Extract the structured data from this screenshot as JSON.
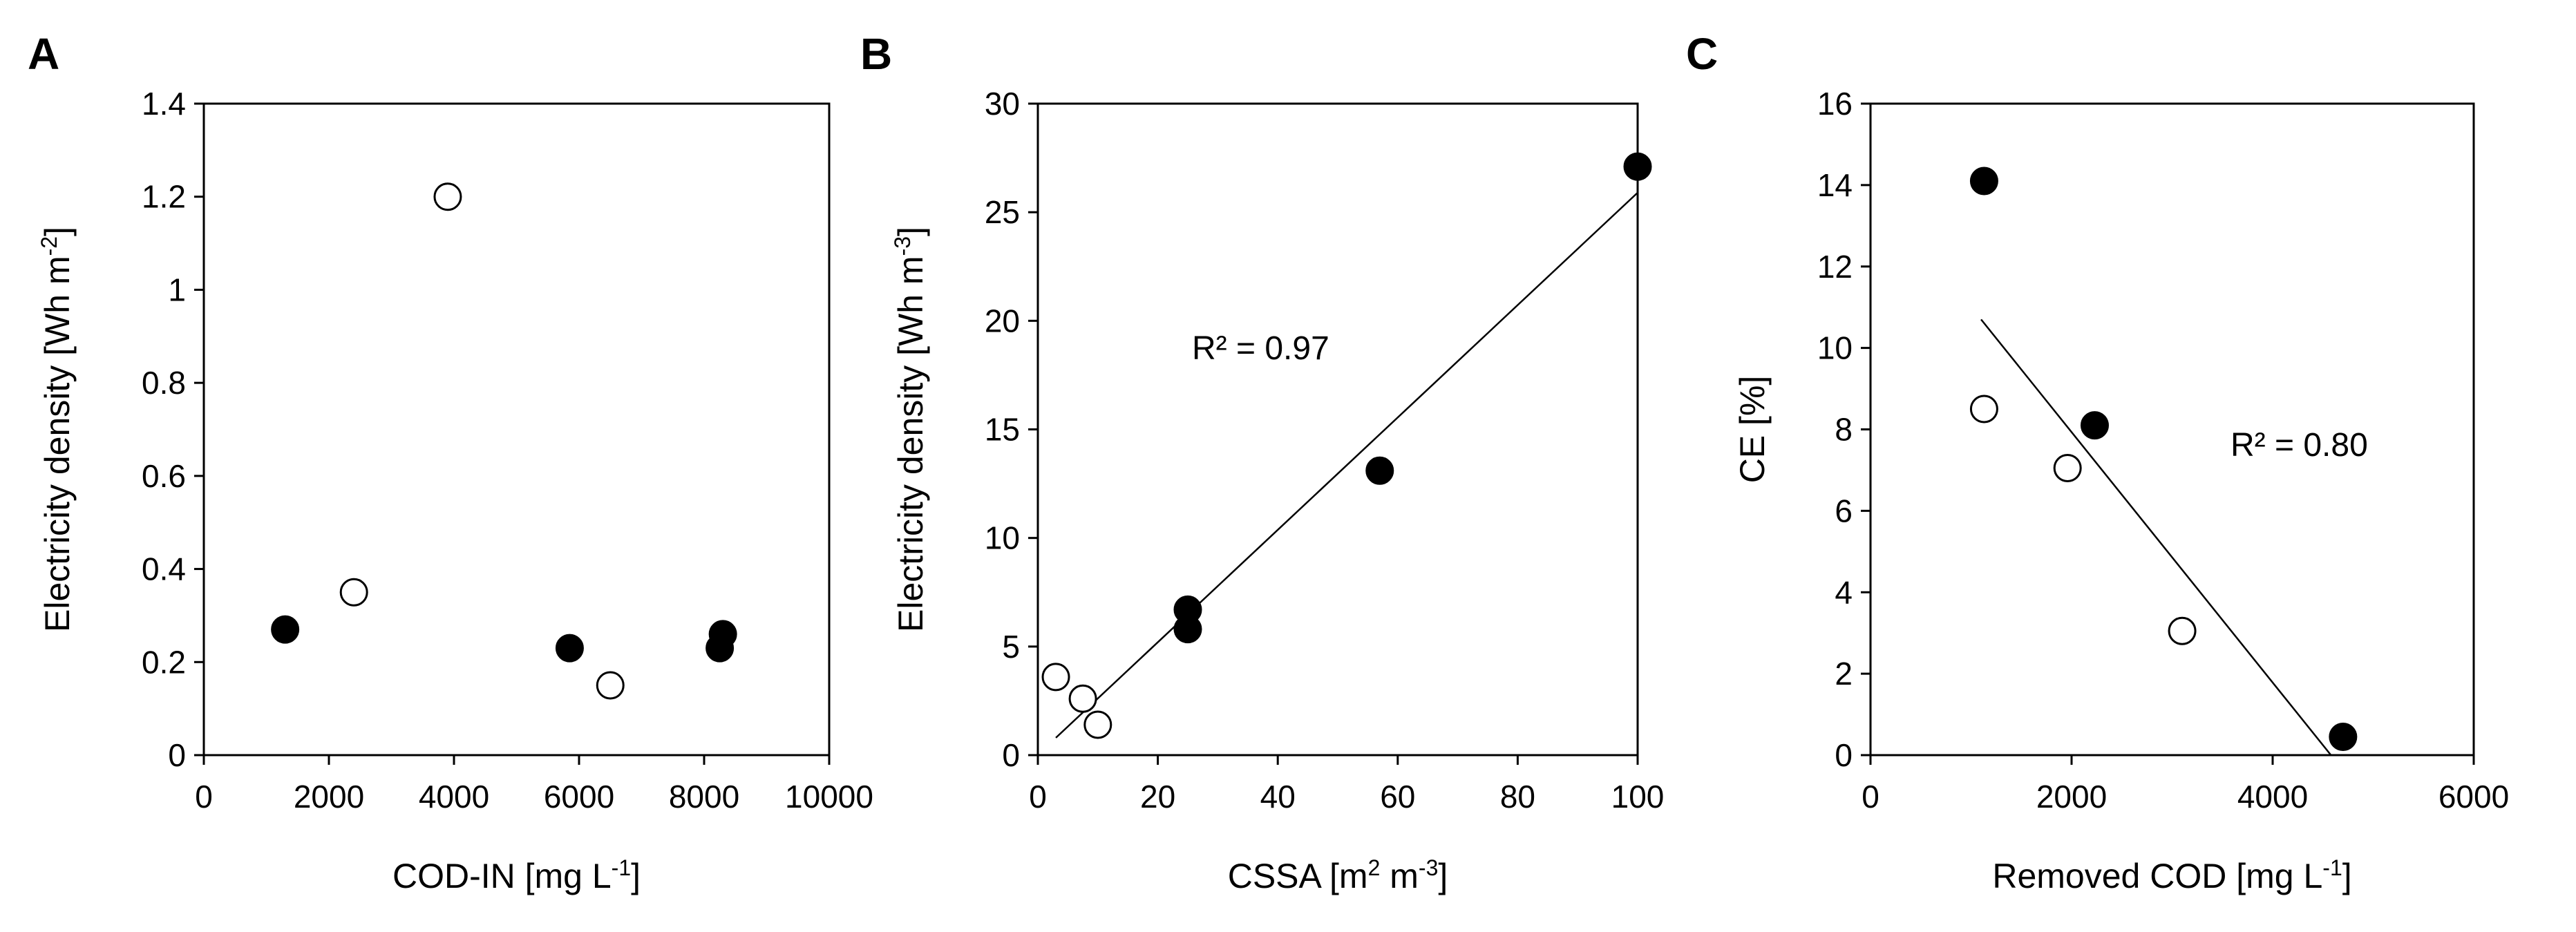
{
  "chart_data": [
    {
      "type": "scatter",
      "panel_label": "A",
      "xlabel": "COD-IN [mg L",
      "xlabel_sup": "-1",
      "xlabel_suffix": "]",
      "ylabel": "Electricity density [Wh m",
      "ylabel_sup": "-2",
      "ylabel_suffix": "]",
      "xlim": [
        0,
        10000
      ],
      "ylim": [
        0,
        1.4
      ],
      "x_ticks": [
        "0",
        "2000",
        "4000",
        "6000",
        "8000",
        "10000"
      ],
      "y_ticks": [
        "0",
        "0.2",
        "0.4",
        "0.6",
        "0.8",
        "1",
        "1.2",
        "1.4"
      ],
      "series": [
        {
          "name": "filled",
          "marker": "filled-circle",
          "points": [
            [
              1300,
              0.27
            ],
            [
              5850,
              0.23
            ],
            [
              8250,
              0.23
            ],
            [
              8300,
              0.26
            ]
          ]
        },
        {
          "name": "open",
          "marker": "open-circle",
          "points": [
            [
              2400,
              0.35
            ],
            [
              3900,
              1.2
            ],
            [
              6500,
              0.15
            ]
          ]
        }
      ],
      "trendline": null,
      "annotation": null
    },
    {
      "type": "scatter",
      "panel_label": "B",
      "xlabel": "CSSA [m",
      "xlabel_sup": "2",
      "xlabel_suffix": " m",
      "xlabel_sup2": "-3",
      "xlabel_suffix2": "]",
      "ylabel": "Electricity density [Wh m",
      "ylabel_sup": "-3",
      "ylabel_suffix": "]",
      "xlim": [
        0,
        100
      ],
      "ylim": [
        0,
        30
      ],
      "x_ticks": [
        "0",
        "20",
        "40",
        "60",
        "80",
        "100"
      ],
      "y_ticks": [
        "0",
        "5",
        "10",
        "15",
        "20",
        "25",
        "30"
      ],
      "series": [
        {
          "name": "filled",
          "marker": "filled-circle",
          "points": [
            [
              25,
              5.8
            ],
            [
              25,
              6.7
            ],
            [
              57,
              13.1
            ],
            [
              100,
              27.1
            ]
          ]
        },
        {
          "name": "open",
          "marker": "open-circle",
          "points": [
            [
              3,
              3.6
            ],
            [
              7.5,
              2.6
            ],
            [
              10,
              1.4
            ]
          ]
        }
      ],
      "trendline": {
        "x": [
          3,
          100
        ],
        "y": [
          0.8,
          25.9
        ]
      },
      "annotation": "R² = 0.97"
    },
    {
      "type": "scatter",
      "panel_label": "C",
      "xlabel": "Removed COD [mg L",
      "xlabel_sup": "-1",
      "xlabel_suffix": "]",
      "ylabel": "CE [%]",
      "xlim": [
        0,
        6000
      ],
      "ylim": [
        0,
        16
      ],
      "x_ticks": [
        "0",
        "2000",
        "4000",
        "6000"
      ],
      "y_ticks": [
        "0",
        "2",
        "4",
        "6",
        "8",
        "10",
        "12",
        "14",
        "16"
      ],
      "series": [
        {
          "name": "filled",
          "marker": "filled-circle",
          "points": [
            [
              1130,
              14.1
            ],
            [
              2230,
              8.1
            ],
            [
              4700,
              0.45
            ]
          ]
        },
        {
          "name": "open",
          "marker": "open-circle",
          "points": [
            [
              1130,
              8.5
            ],
            [
              1960,
              7.05
            ],
            [
              3100,
              3.05
            ]
          ]
        }
      ],
      "trendline": {
        "x": [
          1100,
          4580
        ],
        "y": [
          10.7,
          0
        ]
      },
      "annotation": "R² = 0.80"
    }
  ]
}
